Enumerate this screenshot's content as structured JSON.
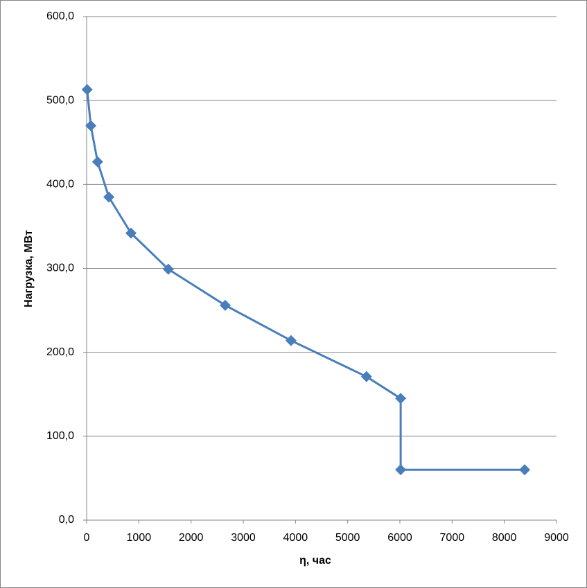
{
  "chart_data": {
    "type": "line",
    "x_label": "η, час",
    "y_label": "Нагрузка, МВт",
    "x": [
      10,
      80,
      210,
      425,
      850,
      1565,
      2655,
      3915,
      5360,
      6015,
      6015,
      8390
    ],
    "values": [
      513,
      470,
      427,
      385,
      342,
      299,
      256,
      214,
      171,
      145,
      60,
      60
    ],
    "color": "#4a7ebb",
    "xlim": [
      0,
      9000
    ],
    "xticks": [
      0,
      1000,
      2000,
      3000,
      4000,
      5000,
      6000,
      7000,
      8000,
      9000
    ],
    "ylim": [
      0,
      600
    ],
    "yticks": [
      {
        "value": 0,
        "label": "0,0"
      },
      {
        "value": 100,
        "label": "100,0"
      },
      {
        "value": 200,
        "label": "200,0"
      },
      {
        "value": 300,
        "label": "300,0"
      },
      {
        "value": 400,
        "label": "400,0"
      },
      {
        "value": 500,
        "label": "500,0"
      },
      {
        "value": 600,
        "label": "600,0"
      }
    ],
    "grid": true
  }
}
